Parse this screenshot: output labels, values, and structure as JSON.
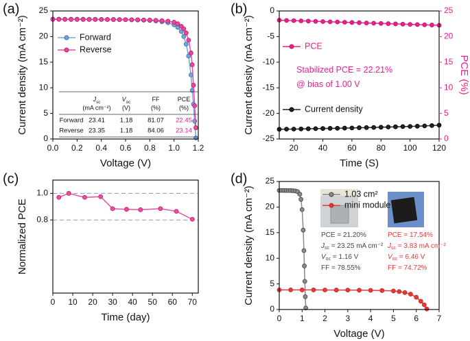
{
  "chart_data": [
    {
      "type": "line",
      "title": "(a)",
      "xlabel": "Voltage (V)",
      "ylabel": "Current density (mA cm⁻²)",
      "xlim": [
        0,
        1.2
      ],
      "xticks": [
        {
          "value": 0,
          "label": "0.0"
        },
        0.2,
        0.4,
        0.6,
        0.8,
        {
          "value": 1,
          "label": "1.0"
        },
        1.2
      ],
      "ylim": [
        0,
        25
      ],
      "yticks": [
        0,
        5,
        10,
        15,
        20,
        25
      ],
      "series": [
        {
          "name": "Forward",
          "color": "#6fa8dc",
          "edge": "#3d6fa8",
          "x": [
            0,
            0.05,
            0.1,
            0.15,
            0.2,
            0.25,
            0.3,
            0.35,
            0.4,
            0.45,
            0.5,
            0.55,
            0.6,
            0.65,
            0.7,
            0.75,
            0.8,
            0.85,
            0.9,
            0.95,
            1.0,
            1.03,
            1.06,
            1.08,
            1.1,
            1.12,
            1.14,
            1.15,
            1.16,
            1.17,
            1.18
          ],
          "values": [
            23.41,
            23.41,
            23.4,
            23.4,
            23.39,
            23.39,
            23.38,
            23.37,
            23.36,
            23.35,
            23.34,
            23.32,
            23.3,
            23.27,
            23.24,
            23.2,
            23.15,
            23.05,
            22.9,
            22.7,
            22.3,
            21.8,
            21.0,
            20.0,
            18.5,
            16.2,
            12.5,
            9.5,
            6.8,
            3.5,
            0.2
          ]
        },
        {
          "name": "Reverse",
          "color": "#e8489b",
          "edge": "#c2186b",
          "x": [
            0,
            0.05,
            0.1,
            0.15,
            0.2,
            0.25,
            0.3,
            0.35,
            0.4,
            0.45,
            0.5,
            0.55,
            0.6,
            0.65,
            0.7,
            0.75,
            0.8,
            0.85,
            0.9,
            0.95,
            1.0,
            1.03,
            1.06,
            1.08,
            1.1,
            1.12,
            1.14,
            1.15,
            1.16,
            1.17,
            1.18
          ],
          "values": [
            23.35,
            23.35,
            23.35,
            23.34,
            23.34,
            23.34,
            23.33,
            23.33,
            23.33,
            23.32,
            23.32,
            23.31,
            23.3,
            23.29,
            23.27,
            23.25,
            23.22,
            23.18,
            23.1,
            23.0,
            22.8,
            22.5,
            22.0,
            21.5,
            20.7,
            19.3,
            16.8,
            14.5,
            10.5,
            6.5,
            2.2
          ]
        }
      ],
      "table": {
        "header": [
          [
            {
              "text": "J"
            },
            {
              "sub": "sc"
            }
          ],
          [
            {
              "text": "V"
            },
            {
              "sub": "oc"
            }
          ],
          [
            {
              "text": "FF"
            }
          ],
          [
            {
              "text": "PCE"
            }
          ]
        ],
        "units": [
          "(mA cm⁻²)",
          "(V)",
          "(%)",
          "(%)"
        ],
        "rows": [
          [
            "Forward",
            "23.41",
            "1.18",
            "81.07",
            "22.45"
          ],
          [
            "Reverse",
            "23.35",
            "1.18",
            "84.06",
            "23.14"
          ]
        ],
        "highlight_color": "#e91e8c"
      }
    },
    {
      "type": "line",
      "title": "(b)",
      "xlabel": "Time (S)",
      "ylabel": "Current density (mA cm⁻²)",
      "y2label": "PCE (%)",
      "y2_color": "#e91e8c",
      "xlim": [
        10,
        120
      ],
      "xticks": [
        20,
        40,
        60,
        80,
        100,
        120
      ],
      "ylim": [
        -25,
        0
      ],
      "yticks": [
        -25,
        -20,
        -15,
        -10,
        -5,
        0
      ],
      "y2lim": [
        0,
        25
      ],
      "y2ticks": [
        0,
        5,
        10,
        15,
        20,
        25
      ],
      "series": [
        {
          "name": "PCE",
          "color": "#e91e8c",
          "edge": "#c2186b",
          "axis": "y2",
          "x": [
            10,
            15,
            20,
            25,
            30,
            35,
            40,
            45,
            50,
            55,
            60,
            65,
            70,
            75,
            80,
            85,
            90,
            95,
            100,
            105,
            110,
            115,
            120
          ],
          "values": [
            23.2,
            23.15,
            23.11,
            23.06,
            23.02,
            22.97,
            22.93,
            22.88,
            22.84,
            22.79,
            22.75,
            22.7,
            22.65,
            22.61,
            22.56,
            22.52,
            22.47,
            22.43,
            22.38,
            22.34,
            22.29,
            22.25,
            22.2
          ]
        },
        {
          "name": "Current density",
          "color": "#222222",
          "edge": "#000000",
          "x": [
            10,
            15,
            20,
            25,
            30,
            35,
            40,
            45,
            50,
            55,
            60,
            65,
            70,
            75,
            80,
            85,
            90,
            95,
            100,
            105,
            110,
            115,
            120
          ],
          "values": [
            -23.1,
            -23.08,
            -23.06,
            -23.04,
            -23.0,
            -22.98,
            -22.95,
            -22.92,
            -22.9,
            -22.87,
            -22.84,
            -22.8,
            -22.77,
            -22.74,
            -22.7,
            -22.66,
            -22.62,
            -22.58,
            -22.54,
            -22.5,
            -22.44,
            -22.38,
            -22.3
          ]
        }
      ],
      "annotation_groups": [
        {
          "color": "#e91e8c",
          "lines": [
            [
              {
                "text": "Stabilized PCE = 22.21%"
              }
            ],
            [
              {
                "text": "@ bias of 1.00 V"
              }
            ]
          ]
        }
      ]
    },
    {
      "type": "line",
      "title": "(c)",
      "xlabel": "Time (day)",
      "ylabel": "Normalized PCE",
      "xlim": [
        0,
        73
      ],
      "xticks": [
        0,
        10,
        20,
        30,
        40,
        50,
        60,
        70
      ],
      "ylim": [
        0.25,
        1.1
      ],
      "yticks": [
        0.8,
        {
          "value": 1,
          "label": "1.0"
        }
      ],
      "hlines": [
        1,
        0.8
      ],
      "series": [
        {
          "name": "Normalized PCE",
          "color": "#e84fa0",
          "edge": "#c2186b",
          "x": [
            3,
            8,
            16,
            24,
            30,
            37,
            44,
            54,
            62,
            70
          ],
          "values": [
            0.97,
            1.0,
            0.97,
            0.975,
            0.885,
            0.88,
            0.877,
            0.885,
            0.865,
            0.805
          ]
        }
      ]
    },
    {
      "type": "line",
      "title": "(d)",
      "xlabel": "Voltage (V)",
      "ylabel": "Current density (mA cm⁻²)",
      "xlim": [
        0,
        7
      ],
      "xticks": [
        0,
        1,
        2,
        3,
        4,
        5,
        6,
        7
      ],
      "ylim": [
        0,
        25
      ],
      "yticks": [
        0,
        5,
        10,
        15,
        20,
        25
      ],
      "series": [
        {
          "name": "1.03 cm²",
          "color": "#8a8a8a",
          "edge": "#444444",
          "x": [
            0,
            0.1,
            0.2,
            0.3,
            0.4,
            0.5,
            0.6,
            0.7,
            0.8,
            0.9,
            0.95,
            1.0,
            1.05,
            1.08,
            1.1,
            1.12,
            1.14,
            1.16
          ],
          "values": [
            23.25,
            23.25,
            23.24,
            23.24,
            23.23,
            23.22,
            23.2,
            23.15,
            23.0,
            22.5,
            21.5,
            19.5,
            15.5,
            11.5,
            8.5,
            5.5,
            2.5,
            0.3
          ]
        },
        {
          "name": "mini module",
          "color": "#e53935",
          "edge": "#c62828",
          "x": [
            0,
            0.5,
            1,
            1.5,
            2,
            2.5,
            3,
            3.5,
            4,
            4.5,
            5,
            5.25,
            5.5,
            5.75,
            6,
            6.2,
            6.35,
            6.46
          ],
          "values": [
            3.83,
            3.83,
            3.82,
            3.82,
            3.81,
            3.8,
            3.79,
            3.77,
            3.74,
            3.7,
            3.62,
            3.5,
            3.3,
            3.0,
            2.4,
            1.6,
            0.9,
            0.1
          ]
        }
      ],
      "annotation_groups": [
        {
          "color": "#444444",
          "lines": [
            [
              {
                "text": "PCE = 21.20%"
              }
            ],
            [
              {
                "text": "J"
              },
              {
                "sub": "sc"
              },
              {
                "text": " = 23.25 mA cm⁻²"
              }
            ],
            [
              {
                "text": "V"
              },
              {
                "sub": "oc"
              },
              {
                "text": " = 1.16 V"
              }
            ],
            [
              {
                "text": "FF = 78.55%"
              }
            ]
          ]
        },
        {
          "color": "#e53935",
          "lines": [
            [
              {
                "text": "PCE = 17.54%"
              }
            ],
            [
              {
                "text": "J"
              },
              {
                "sub": "sc"
              },
              {
                "text": " = 3.83 mA cm⁻²"
              }
            ],
            [
              {
                "text": "V"
              },
              {
                "sub": "oc"
              },
              {
                "text": " = 6.46 V"
              }
            ],
            [
              {
                "text": "FF = 74.72%"
              }
            ]
          ]
        }
      ]
    }
  ]
}
